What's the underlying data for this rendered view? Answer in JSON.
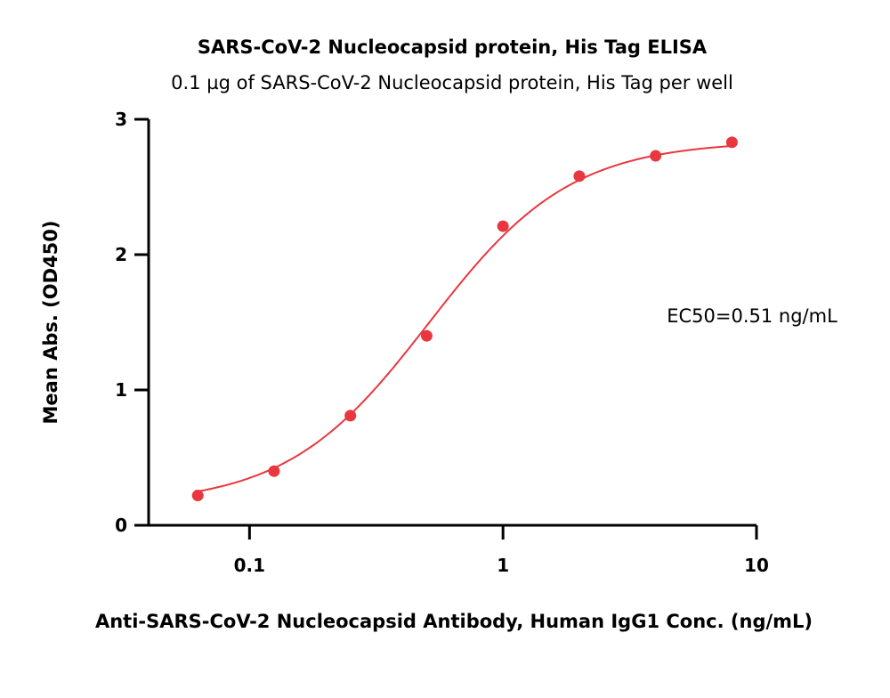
{
  "chart_data": {
    "type": "scatter",
    "title": "SARS-CoV-2 Nucleocapsid protein, His Tag ELISA",
    "subtitle": "0.1 µg of SARS-CoV-2 Nucleocapsid protein, His Tag per well",
    "xlabel": "Anti-SARS-CoV-2 Nucleocapsid Antibody, Human IgG1 Conc. (ng/mL)",
    "ylabel": "Mean Abs. (OD450)",
    "xscale": "log",
    "xlim": [
      0.04,
      10
    ],
    "ylim": [
      0,
      3
    ],
    "xticks": [
      0.1,
      1,
      10
    ],
    "xtick_labels": [
      "0.1",
      "1",
      "10"
    ],
    "yticks": [
      0,
      1,
      2,
      3
    ],
    "ytick_labels": [
      "0",
      "1",
      "2",
      "3"
    ],
    "x": [
      0.0625,
      0.125,
      0.25,
      0.5,
      1,
      2,
      4,
      8
    ],
    "y": [
      0.22,
      0.4,
      0.81,
      1.4,
      2.21,
      2.58,
      2.73,
      2.83
    ],
    "fit": {
      "bottom": 0.15,
      "top": 2.84,
      "ec50": 0.51,
      "hill": 1.55
    },
    "annotation": "EC50=0.51 ng/mL",
    "grid": false,
    "colors": {
      "series": "#e8373f",
      "axis": "#000000"
    }
  }
}
